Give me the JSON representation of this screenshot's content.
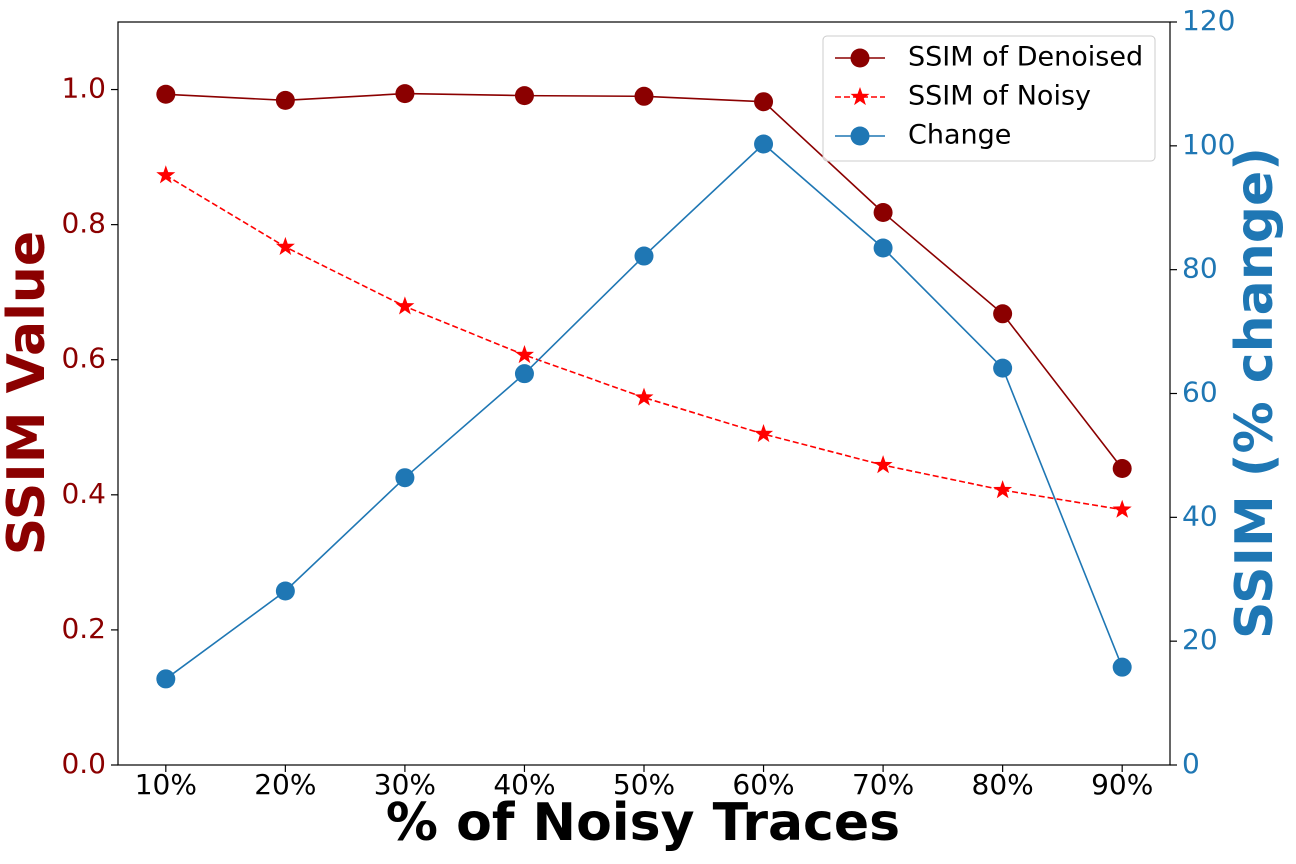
{
  "chart_data": {
    "type": "line",
    "xlabel": "% of Noisy Traces",
    "ylabel": "SSIM Value",
    "y2label": "SSIM (% change)",
    "categories": [
      "10%",
      "20%",
      "30%",
      "40%",
      "50%",
      "60%",
      "70%",
      "80%",
      "90%"
    ],
    "series": [
      {
        "name": "SSIM of Denoised",
        "color": "#8b0000",
        "linestyle": "solid",
        "marker": "circle",
        "axis": "y",
        "values": [
          0.993,
          0.984,
          0.994,
          0.991,
          0.99,
          0.982,
          0.818,
          0.668,
          0.439
        ]
      },
      {
        "name": "SSIM of Noisy",
        "color": "#ff0000",
        "linestyle": "dashed",
        "marker": "star",
        "axis": "y",
        "values": [
          0.873,
          0.767,
          0.679,
          0.607,
          0.544,
          0.49,
          0.444,
          0.407,
          0.378
        ]
      },
      {
        "name": "Change",
        "color": "#1f77b4",
        "linestyle": "solid",
        "marker": "circle",
        "axis": "y2",
        "values": [
          13.9,
          28.1,
          46.4,
          63.2,
          82.2,
          100.3,
          83.5,
          64.1,
          15.8
        ]
      }
    ],
    "ylim": [
      0,
      1.1
    ],
    "yticks": [
      {
        "value": 0,
        "label": "0.0"
      },
      0.2,
      0.4,
      0.6,
      0.8,
      {
        "value": 1,
        "label": "1.0"
      }
    ],
    "ylabel_color": "#8b0000",
    "y2lim": [
      0,
      120
    ],
    "y2ticks": [
      0,
      20,
      40,
      60,
      80,
      100,
      120
    ],
    "y2label_color": "#1f77b4",
    "legend": "upper right"
  }
}
